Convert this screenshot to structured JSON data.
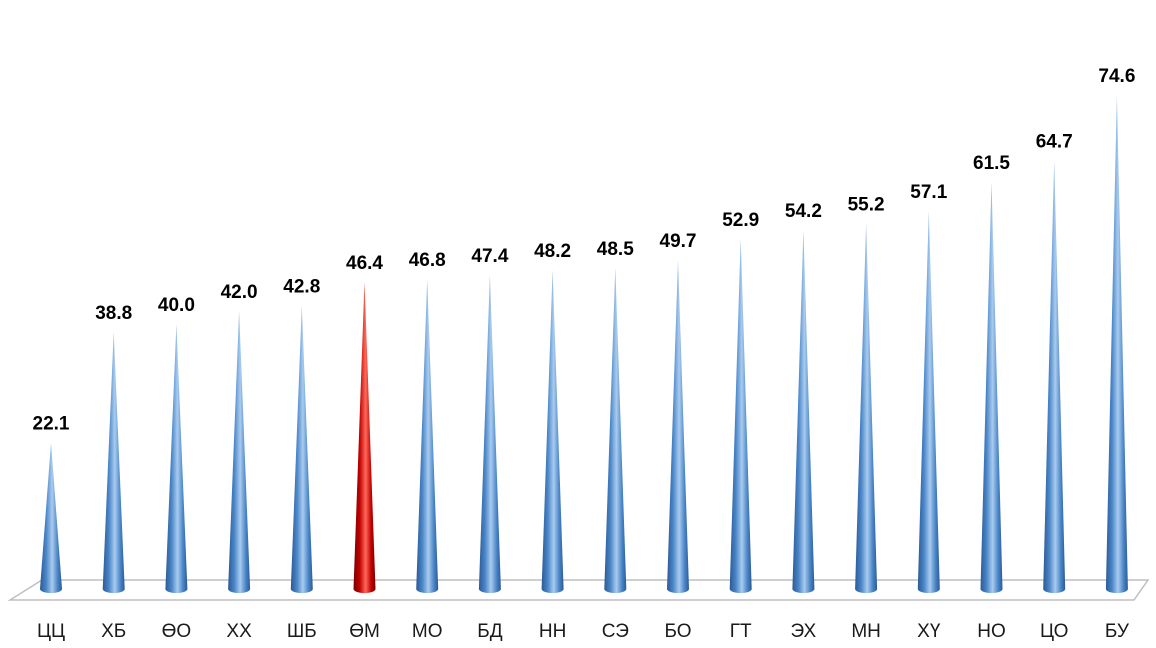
{
  "chart_data": {
    "type": "bar",
    "bar_style": "3d-cone",
    "categories": [
      "ЦЦ",
      "ХБ",
      "ӨО",
      "ХХ",
      "ШБ",
      "ӨМ",
      "МО",
      "БД",
      "НН",
      "СЭ",
      "БО",
      "ГТ",
      "ЭХ",
      "МН",
      "ХҮ",
      "НО",
      "ЦО",
      "БУ"
    ],
    "values": [
      22.1,
      38.8,
      40.0,
      42.0,
      42.8,
      46.4,
      46.8,
      47.4,
      48.2,
      48.5,
      49.7,
      52.9,
      54.2,
      55.2,
      57.1,
      61.5,
      64.7,
      74.6
    ],
    "value_labels": [
      "22.1",
      "38.8",
      "40.0",
      "42.0",
      "42.8",
      "46.4",
      "46.8",
      "47.4",
      "48.2",
      "48.5",
      "49.7",
      "52.9",
      "54.2",
      "55.2",
      "57.1",
      "61.5",
      "64.7",
      "74.6"
    ],
    "highlight_index": 5,
    "colors": {
      "bar": "#4a86c8",
      "bar_light": "#a9cbef",
      "bar_dark": "#2b5a94",
      "highlight": "#c00000",
      "highlight_light": "#ff6a5a",
      "highlight_dark": "#7a0000",
      "floor": "#bfbfbf"
    },
    "title": "",
    "xlabel": "",
    "ylabel": "",
    "grid": false,
    "legend": "none"
  }
}
